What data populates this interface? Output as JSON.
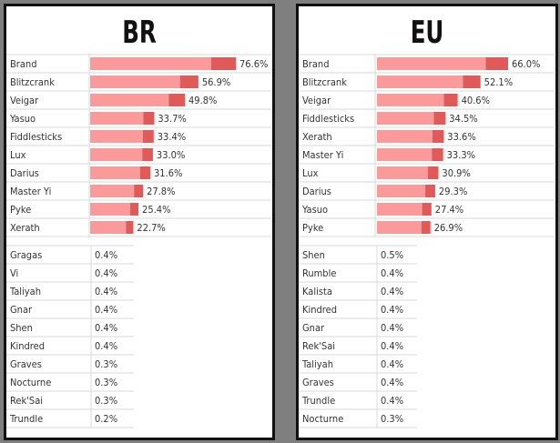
{
  "chart_data": [
    {
      "type": "bar",
      "title": "BR",
      "top": {
        "categories": [
          "Brand",
          "Blitzcrank",
          "Veigar",
          "Yasuo",
          "Fiddlesticks",
          "Lux",
          "Darius",
          "Master Yi",
          "Pyke",
          "Xerath"
        ],
        "values": [
          76.6,
          56.9,
          49.8,
          33.7,
          33.4,
          33.0,
          31.6,
          27.8,
          25.4,
          22.7
        ],
        "labels": [
          "76.6%",
          "56.9%",
          "49.8%",
          "33.7%",
          "33.4%",
          "33.0%",
          "31.6%",
          "27.8%",
          "25.4%",
          "22.7%"
        ]
      },
      "bottom": {
        "categories": [
          "Gragas",
          "Vi",
          "Taliyah",
          "Gnar",
          "Shen",
          "Kindred",
          "Graves",
          "Nocturne",
          "Rek'Sai",
          "Trundle"
        ],
        "labels": [
          "0.4%",
          "0.4%",
          "0.4%",
          "0.4%",
          "0.4%",
          "0.4%",
          "0.3%",
          "0.3%",
          "0.3%",
          "0.2%"
        ]
      }
    },
    {
      "type": "bar",
      "title": "EU",
      "top": {
        "categories": [
          "Brand",
          "Blitzcrank",
          "Veigar",
          "Fiddlesticks",
          "Xerath",
          "Master Yi",
          "Lux",
          "Darius",
          "Yasuo",
          "Pyke"
        ],
        "values": [
          66.0,
          52.1,
          40.6,
          34.5,
          33.6,
          33.3,
          30.9,
          29.3,
          27.4,
          26.9
        ],
        "labels": [
          "66.0%",
          "52.1%",
          "40.6%",
          "34.5%",
          "33.6%",
          "33.3%",
          "30.9%",
          "29.3%",
          "27.4%",
          "26.9%"
        ]
      },
      "bottom": {
        "categories": [
          "Shen",
          "Rumble",
          "Kalista",
          "Kindred",
          "Gnar",
          "Rek'Sai",
          "Taliyah",
          "Graves",
          "Trundle",
          "Nocturne"
        ],
        "labels": [
          "0.5%",
          "0.4%",
          "0.4%",
          "0.4%",
          "0.4%",
          "0.4%",
          "0.4%",
          "0.4%",
          "0.4%",
          "0.3%"
        ]
      }
    }
  ],
  "colors": {
    "bar": "#fa9a9a",
    "bar_tip": "#e05a5a",
    "grid": "#d8d8d8"
  }
}
